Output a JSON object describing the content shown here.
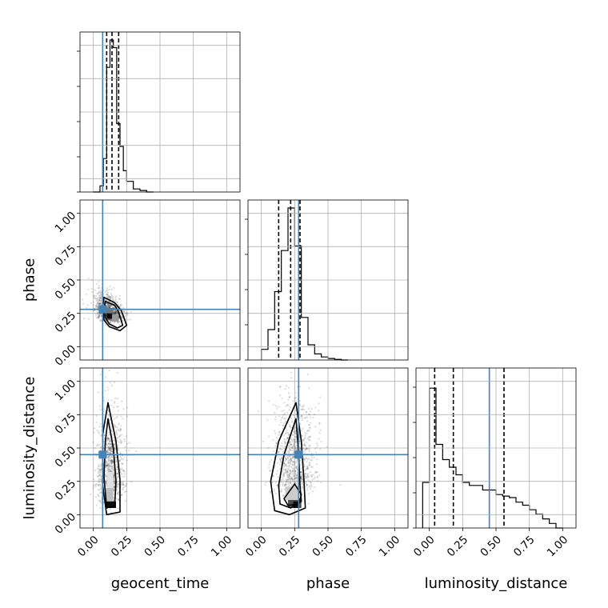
{
  "chart_data": {
    "type": "corner",
    "parameters": [
      "geocent_time",
      "phase",
      "luminosity_distance"
    ],
    "axis_range": [
      -0.1,
      1.1
    ],
    "tick_labels": [
      "0.00",
      "0.25",
      "0.50",
      "0.75",
      "1.00"
    ],
    "tick_values": [
      0,
      0.25,
      0.5,
      0.75,
      1.0
    ],
    "grid": true,
    "colors": {
      "truth": "#4682b4",
      "hist": "#000000",
      "contour": "#000000",
      "points": "#000000"
    },
    "truths": {
      "geocent_time": 0.07,
      "phase": 0.28,
      "luminosity_distance": 0.45
    },
    "diagonal": [
      {
        "param": "geocent_time",
        "bin_edges": [
          0.0,
          0.05,
          0.075,
          0.1,
          0.125,
          0.15,
          0.175,
          0.2,
          0.225,
          0.25,
          0.3,
          0.35,
          0.4,
          0.45
        ],
        "counts": [
          0,
          0.04,
          0.22,
          0.82,
          1.0,
          0.95,
          0.45,
          0.3,
          0.14,
          0.07,
          0.02,
          0.01,
          0
        ],
        "quantiles": [
          0.1,
          0.14,
          0.19
        ]
      },
      {
        "param": "phase",
        "bin_edges": [
          0.0,
          0.05,
          0.1,
          0.15,
          0.2,
          0.25,
          0.3,
          0.35,
          0.4,
          0.45,
          0.5,
          0.55,
          0.6,
          0.65
        ],
        "counts": [
          0.07,
          0.2,
          0.45,
          0.72,
          1.0,
          0.75,
          0.28,
          0.1,
          0.04,
          0.02,
          0.01,
          0.004,
          0
        ],
        "quantiles": [
          0.13,
          0.22,
          0.29
        ]
      },
      {
        "param": "luminosity_distance",
        "bin_edges": [
          -0.05,
          0.0,
          0.05,
          0.1,
          0.15,
          0.2,
          0.25,
          0.3,
          0.4,
          0.5,
          0.55,
          0.6,
          0.65,
          0.7,
          0.75,
          0.8,
          0.85,
          0.9,
          0.95,
          1.0
        ],
        "counts": [
          0.3,
          0.92,
          0.55,
          0.45,
          0.4,
          0.35,
          0.3,
          0.28,
          0.25,
          0.22,
          0.21,
          0.2,
          0.17,
          0.15,
          0.12,
          0.09,
          0.06,
          0.03,
          0.0
        ],
        "quantiles": [
          0.04,
          0.18,
          0.56
        ]
      }
    ],
    "panels_2d": [
      {
        "x": "geocent_time",
        "y": "phase",
        "center": [
          0.12,
          0.23
        ],
        "contours": [
          [
            [
              0.09,
              0.34
            ],
            [
              0.16,
              0.31
            ],
            [
              0.19,
              0.26
            ],
            [
              0.22,
              0.16
            ],
            [
              0.18,
              0.14
            ],
            [
              0.12,
              0.17
            ],
            [
              0.09,
              0.22
            ],
            [
              0.08,
              0.28
            ]
          ],
          [
            [
              0.08,
              0.37
            ],
            [
              0.16,
              0.33
            ],
            [
              0.21,
              0.27
            ],
            [
              0.25,
              0.16
            ],
            [
              0.2,
              0.12
            ],
            [
              0.12,
              0.15
            ],
            [
              0.08,
              0.2
            ],
            [
              0.07,
              0.3
            ]
          ]
        ],
        "shades": [
          {
            "x": 0.1,
            "y": 0.21,
            "w": 0.04,
            "h": 0.04,
            "level": 0.95
          },
          {
            "x": 0.1,
            "y": 0.25,
            "w": 0.05,
            "h": 0.04,
            "level": 0.55
          },
          {
            "x": 0.14,
            "y": 0.19,
            "w": 0.05,
            "h": 0.05,
            "level": 0.4
          }
        ]
      },
      {
        "x": "geocent_time",
        "y": "luminosity_distance",
        "center": [
          0.13,
          0.25
        ],
        "contours": [
          [
            [
              0.11,
              0.72
            ],
            [
              0.15,
              0.5
            ],
            [
              0.17,
              0.25
            ],
            [
              0.16,
              0.07
            ],
            [
              0.1,
              0.05
            ],
            [
              0.08,
              0.28
            ],
            [
              0.09,
              0.55
            ]
          ],
          [
            [
              0.11,
              0.84
            ],
            [
              0.17,
              0.55
            ],
            [
              0.2,
              0.26
            ],
            [
              0.2,
              0.02
            ],
            [
              0.1,
              0.0
            ],
            [
              0.07,
              0.22
            ],
            [
              0.07,
              0.6
            ]
          ]
        ],
        "shades": [
          {
            "x": 0.1,
            "y": 0.05,
            "w": 0.07,
            "h": 0.05,
            "level": 0.95
          },
          {
            "x": 0.09,
            "y": 0.1,
            "w": 0.06,
            "h": 0.1,
            "level": 0.25
          },
          {
            "x": 0.1,
            "y": 0.2,
            "w": 0.05,
            "h": 0.12,
            "level": 0.12
          }
        ]
      },
      {
        "x": "phase",
        "y": "luminosity_distance",
        "center": [
          0.25,
          0.3
        ],
        "contours": [
          [
            [
              0.26,
              0.72
            ],
            [
              0.28,
              0.45
            ],
            [
              0.29,
              0.22
            ],
            [
              0.3,
              0.1
            ],
            [
              0.22,
              0.05
            ],
            [
              0.14,
              0.08
            ],
            [
              0.13,
              0.22
            ],
            [
              0.17,
              0.45
            ]
          ],
          [
            [
              0.26,
              0.84
            ],
            [
              0.3,
              0.55
            ],
            [
              0.32,
              0.25
            ],
            [
              0.33,
              0.05
            ],
            [
              0.21,
              0.0
            ],
            [
              0.1,
              0.03
            ],
            [
              0.07,
              0.25
            ],
            [
              0.13,
              0.55
            ]
          ],
          [
            [
              0.25,
              0.23
            ],
            [
              0.3,
              0.15
            ],
            [
              0.28,
              0.08
            ],
            [
              0.2,
              0.07
            ],
            [
              0.17,
              0.12
            ]
          ]
        ],
        "shades": [
          {
            "x": 0.2,
            "y": 0.05,
            "w": 0.1,
            "h": 0.06,
            "level": 0.7
          },
          {
            "x": 0.24,
            "y": 0.05,
            "w": 0.04,
            "h": 0.05,
            "level": 0.95
          },
          {
            "x": 0.18,
            "y": 0.11,
            "w": 0.1,
            "h": 0.1,
            "level": 0.2
          }
        ]
      }
    ]
  }
}
